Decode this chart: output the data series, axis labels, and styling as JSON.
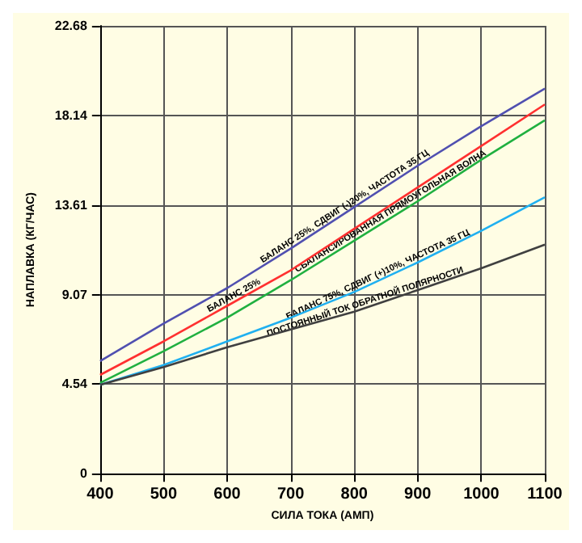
{
  "chart_data": {
    "type": "line",
    "xlabel": "СИЛА ТОКА (АМП)",
    "ylabel": "НАПЛАВКА (КГ/ЧАС)",
    "x": [
      400,
      500,
      600,
      700,
      800,
      900,
      1000,
      1100
    ],
    "xlim": [
      400,
      1100
    ],
    "xticks": [
      400,
      500,
      600,
      700,
      800,
      900,
      1000,
      1100
    ],
    "ylim": [
      0,
      22.68
    ],
    "yticks": [
      0,
      4.54,
      9.07,
      13.61,
      18.14,
      22.68
    ],
    "grid": true,
    "marker": "none",
    "line_style": "solid",
    "series": [
      {
        "name": "БАЛАНС 25%, СДВИГ (-)20%, ЧАСТОТА 35 ГЦ",
        "color": "#5050b0",
        "values": [
          5.7,
          7.6,
          9.4,
          11.4,
          13.5,
          15.6,
          17.6,
          19.5
        ]
      },
      {
        "name": "БАЛАНС 25%",
        "color": "#ff3030",
        "values": [
          5.0,
          6.7,
          8.5,
          10.3,
          12.4,
          14.5,
          16.6,
          18.7
        ]
      },
      {
        "name": "СБАЛАНСИРОВАННАЯ ПРЯМОУГОЛЬНАЯ ВОЛНА",
        "color": "#20b040",
        "values": [
          4.6,
          6.2,
          7.9,
          9.8,
          11.8,
          13.8,
          15.9,
          17.9
        ]
      },
      {
        "name": "БАЛАНС 75%, СДВИГ (+)10%, ЧАСТОТА 35 ГЦ",
        "color": "#20b0f0",
        "values": [
          4.5,
          5.5,
          6.7,
          7.9,
          9.2,
          10.7,
          12.3,
          14.0
        ]
      },
      {
        "name": "ПОСТОЯННЫЙ ТОК ОБРАТНОЙ ПОЛЯРНОСТИ",
        "color": "#404040",
        "values": [
          4.5,
          5.4,
          6.4,
          7.3,
          8.2,
          9.3,
          10.4,
          11.6
        ]
      }
    ]
  }
}
